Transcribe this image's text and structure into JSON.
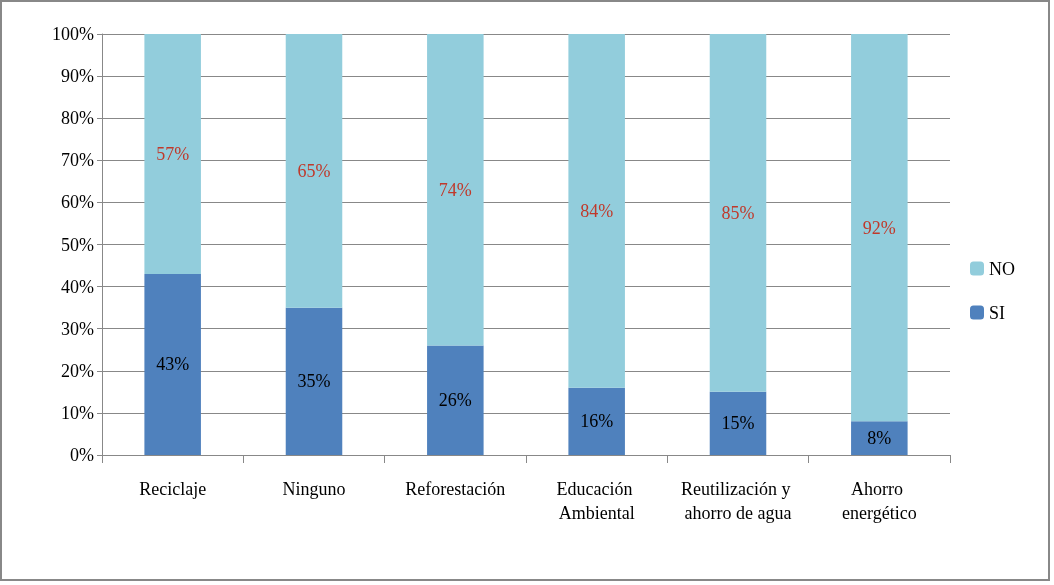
{
  "chart_data": {
    "type": "bar",
    "stacked": true,
    "categories": [
      "Reciclaje",
      "Ninguno",
      "Reforestación",
      "Educación Ambiental",
      "Reutilización y ahorro de agua",
      "Ahorro energético"
    ],
    "series": [
      {
        "name": "SI",
        "color": "#4f81bd",
        "values": [
          43,
          35,
          26,
          16,
          15,
          8
        ],
        "value_labels": [
          "43%",
          "35%",
          "26%",
          "16%",
          "15%",
          "8%"
        ]
      },
      {
        "name": "NO",
        "color": "#92cddc",
        "values": [
          57,
          65,
          74,
          84,
          85,
          92
        ],
        "value_labels": [
          "57%",
          "65%",
          "74%",
          "84%",
          "85%",
          "92%"
        ]
      }
    ],
    "ylim": [
      0,
      100
    ],
    "yticks": [
      {
        "value": 0,
        "label": "0%"
      },
      {
        "value": 10,
        "label": "10%"
      },
      {
        "value": 20,
        "label": "20%"
      },
      {
        "value": 30,
        "label": "30%"
      },
      {
        "value": 40,
        "label": "40%"
      },
      {
        "value": 50,
        "label": "50%"
      },
      {
        "value": 60,
        "label": "60%"
      },
      {
        "value": 70,
        "label": "70%"
      },
      {
        "value": 80,
        "label": "80%"
      },
      {
        "value": 90,
        "label": "90%"
      },
      {
        "value": 100,
        "label": "100%"
      }
    ],
    "grid": "y",
    "legend": "right"
  }
}
